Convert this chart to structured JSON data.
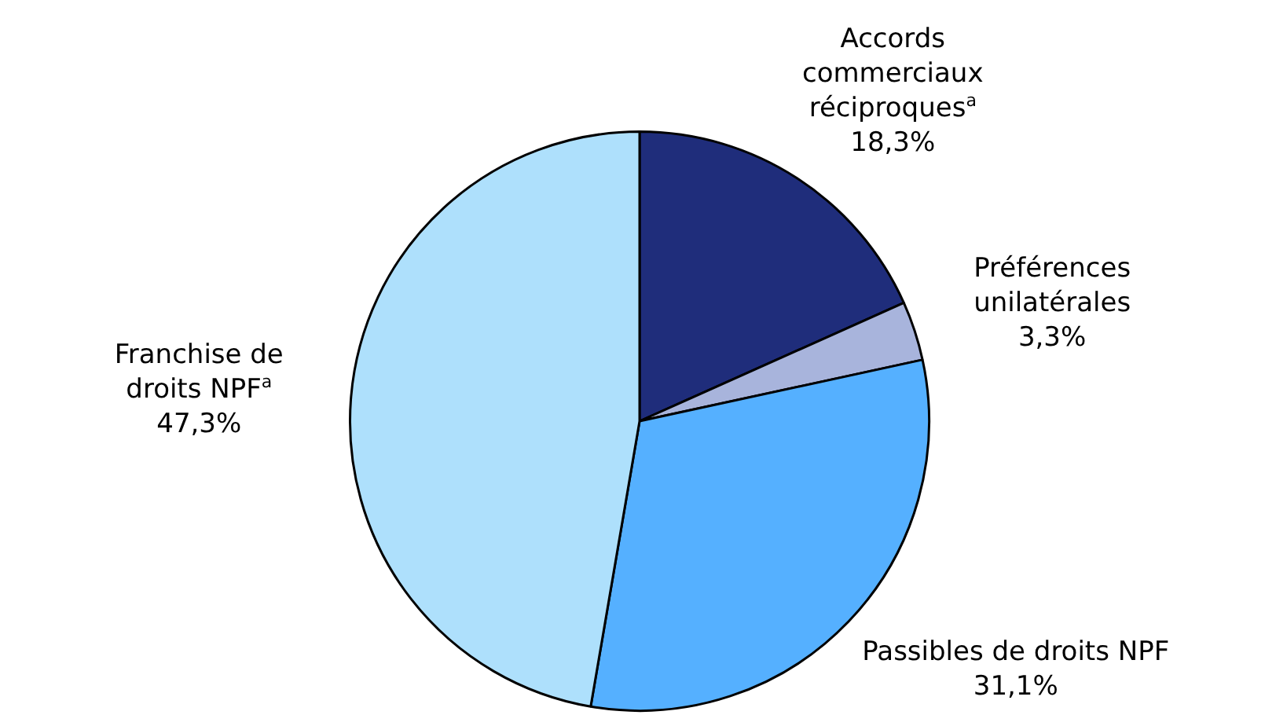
{
  "chart_data": {
    "type": "pie",
    "categories": [
      "Accords commerciaux réciproques$^{a}$",
      "Préférences unilatérales",
      "Passibles de droits NPF",
      "Franchise de droits NPF$^{a}$"
    ],
    "values": [
      18.3,
      3.3,
      31.1,
      47.3
    ],
    "colors": [
      "#1f2d7b",
      "#a8b4dc",
      "#55b0ff",
      "#aee0fc"
    ],
    "value_labels": [
      "18,3%",
      "3,3%",
      "31,1%",
      "47,3%"
    ],
    "legend": false
  }
}
